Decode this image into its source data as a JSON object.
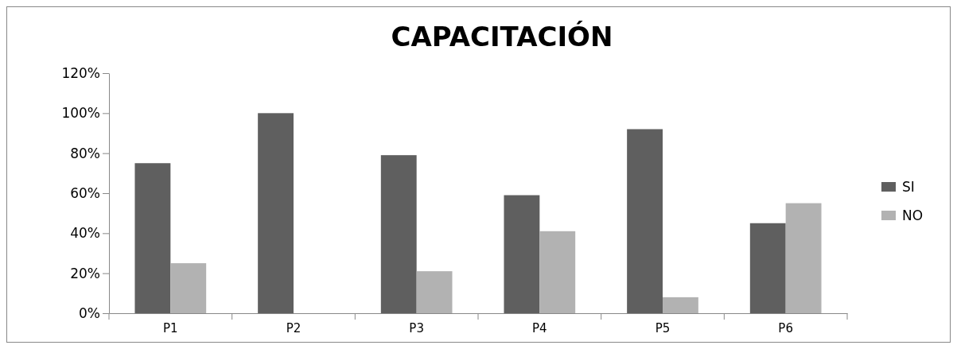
{
  "chart_data": {
    "type": "bar",
    "title": "CAPACITACIÓN",
    "categories": [
      "P1",
      "P2",
      "P3",
      "P4",
      "P5",
      "P6"
    ],
    "series": [
      {
        "name": "SI",
        "color": "#5f5f5f",
        "values": [
          75,
          100,
          79,
          59,
          92,
          45
        ]
      },
      {
        "name": "NO",
        "color": "#b2b2b2",
        "values": [
          25,
          0,
          21,
          41,
          8,
          55
        ]
      }
    ],
    "ylim": [
      0,
      120
    ],
    "yticks": [
      {
        "value": 0,
        "label": "0%"
      },
      {
        "value": 20,
        "label": "20%"
      },
      {
        "value": 40,
        "label": "40%"
      },
      {
        "value": 60,
        "label": "60%"
      },
      {
        "value": 80,
        "label": "80%"
      },
      {
        "value": 100,
        "label": "100%"
      },
      {
        "value": 120,
        "label": "120%"
      }
    ],
    "grid": false,
    "legend": "right"
  }
}
